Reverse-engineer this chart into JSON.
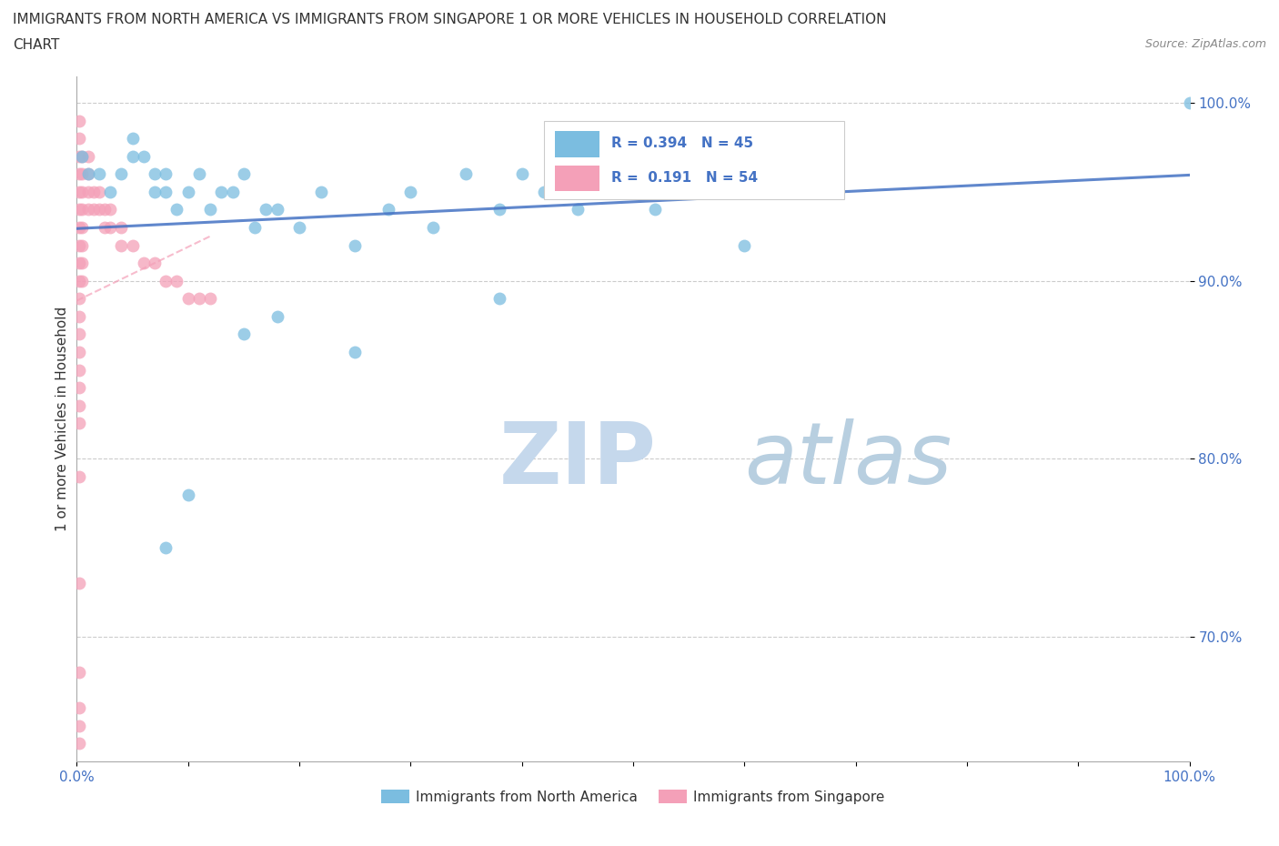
{
  "title_line1": "IMMIGRANTS FROM NORTH AMERICA VS IMMIGRANTS FROM SINGAPORE 1 OR MORE VEHICLES IN HOUSEHOLD CORRELATION",
  "title_line2": "CHART",
  "source": "Source: ZipAtlas.com",
  "ylabel": "1 or more Vehicles in Household",
  "xlim": [
    0.0,
    1.0
  ],
  "ylim": [
    0.63,
    1.015
  ],
  "yticks": [
    0.7,
    0.8,
    0.9,
    1.0
  ],
  "ytick_labels": [
    "70.0%",
    "80.0%",
    "90.0%",
    "100.0%"
  ],
  "xticks": [
    0.0,
    0.1,
    0.2,
    0.3,
    0.4,
    0.5,
    0.6,
    0.7,
    0.8,
    0.9,
    1.0
  ],
  "xtick_labels": [
    "0.0%",
    "",
    "",
    "",
    "",
    "",
    "",
    "",
    "",
    "",
    "100.0%"
  ],
  "blue_R": 0.394,
  "blue_N": 45,
  "pink_R": 0.191,
  "pink_N": 54,
  "blue_color": "#7bbde0",
  "pink_color": "#f4a0b8",
  "blue_label": "Immigrants from North America",
  "pink_label": "Immigrants from Singapore",
  "watermark_ZIP": "ZIP",
  "watermark_atlas": "atlas",
  "watermark_color_ZIP": "#c5d8ec",
  "watermark_color_atlas": "#b8cfe0",
  "background_color": "#ffffff",
  "blue_x": [
    0.005,
    0.01,
    0.02,
    0.03,
    0.04,
    0.05,
    0.05,
    0.06,
    0.07,
    0.07,
    0.08,
    0.08,
    0.09,
    0.1,
    0.11,
    0.12,
    0.13,
    0.14,
    0.15,
    0.16,
    0.17,
    0.18,
    0.2,
    0.22,
    0.25,
    0.28,
    0.3,
    0.32,
    0.35,
    0.38,
    0.4,
    0.42,
    0.45,
    0.48,
    0.5,
    0.52,
    0.55,
    0.38,
    0.15,
    0.18,
    0.25,
    0.1,
    0.08,
    1.0,
    0.6
  ],
  "blue_y": [
    0.97,
    0.96,
    0.96,
    0.95,
    0.96,
    0.98,
    0.97,
    0.97,
    0.96,
    0.95,
    0.96,
    0.95,
    0.94,
    0.95,
    0.96,
    0.94,
    0.95,
    0.95,
    0.96,
    0.93,
    0.94,
    0.94,
    0.93,
    0.95,
    0.92,
    0.94,
    0.95,
    0.93,
    0.96,
    0.94,
    0.96,
    0.95,
    0.94,
    0.96,
    0.95,
    0.94,
    0.96,
    0.89,
    0.87,
    0.88,
    0.86,
    0.78,
    0.75,
    1.0,
    0.92
  ],
  "pink_x": [
    0.002,
    0.002,
    0.002,
    0.002,
    0.002,
    0.002,
    0.002,
    0.002,
    0.002,
    0.002,
    0.002,
    0.002,
    0.002,
    0.002,
    0.002,
    0.002,
    0.002,
    0.002,
    0.005,
    0.005,
    0.005,
    0.005,
    0.005,
    0.005,
    0.005,
    0.005,
    0.01,
    0.01,
    0.01,
    0.01,
    0.015,
    0.015,
    0.02,
    0.02,
    0.025,
    0.025,
    0.03,
    0.03,
    0.04,
    0.04,
    0.05,
    0.06,
    0.07,
    0.08,
    0.09,
    0.1,
    0.11,
    0.12,
    0.002,
    0.002,
    0.002,
    0.002,
    0.002,
    0.002
  ],
  "pink_y": [
    0.99,
    0.98,
    0.97,
    0.96,
    0.95,
    0.94,
    0.93,
    0.92,
    0.91,
    0.9,
    0.89,
    0.88,
    0.87,
    0.86,
    0.85,
    0.84,
    0.83,
    0.82,
    0.97,
    0.96,
    0.95,
    0.94,
    0.93,
    0.92,
    0.91,
    0.9,
    0.97,
    0.96,
    0.95,
    0.94,
    0.95,
    0.94,
    0.95,
    0.94,
    0.94,
    0.93,
    0.94,
    0.93,
    0.93,
    0.92,
    0.92,
    0.91,
    0.91,
    0.9,
    0.9,
    0.89,
    0.89,
    0.89,
    0.79,
    0.73,
    0.68,
    0.64,
    0.65,
    0.66
  ]
}
